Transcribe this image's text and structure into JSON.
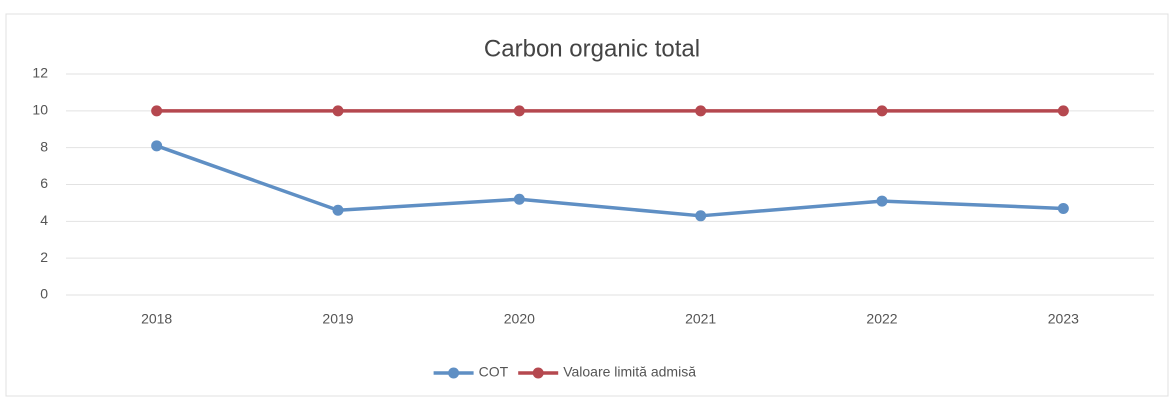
{
  "chart_data": {
    "type": "line",
    "title": "Carbon organic total",
    "categories": [
      "2018",
      "2019",
      "2020",
      "2021",
      "2022",
      "2023"
    ],
    "series": [
      {
        "name": "COT",
        "color": "#5f8fc4",
        "values": [
          8.1,
          4.6,
          5.2,
          4.3,
          5.1,
          4.7
        ]
      },
      {
        "name": "Valoare limită admisă",
        "color": "#b5484f",
        "values": [
          10,
          10,
          10,
          10,
          10,
          10
        ]
      }
    ],
    "ylim": [
      0,
      12
    ],
    "yticks": [
      0,
      2,
      4,
      6,
      8,
      10,
      12
    ],
    "grid": true,
    "legend": "bottom"
  }
}
